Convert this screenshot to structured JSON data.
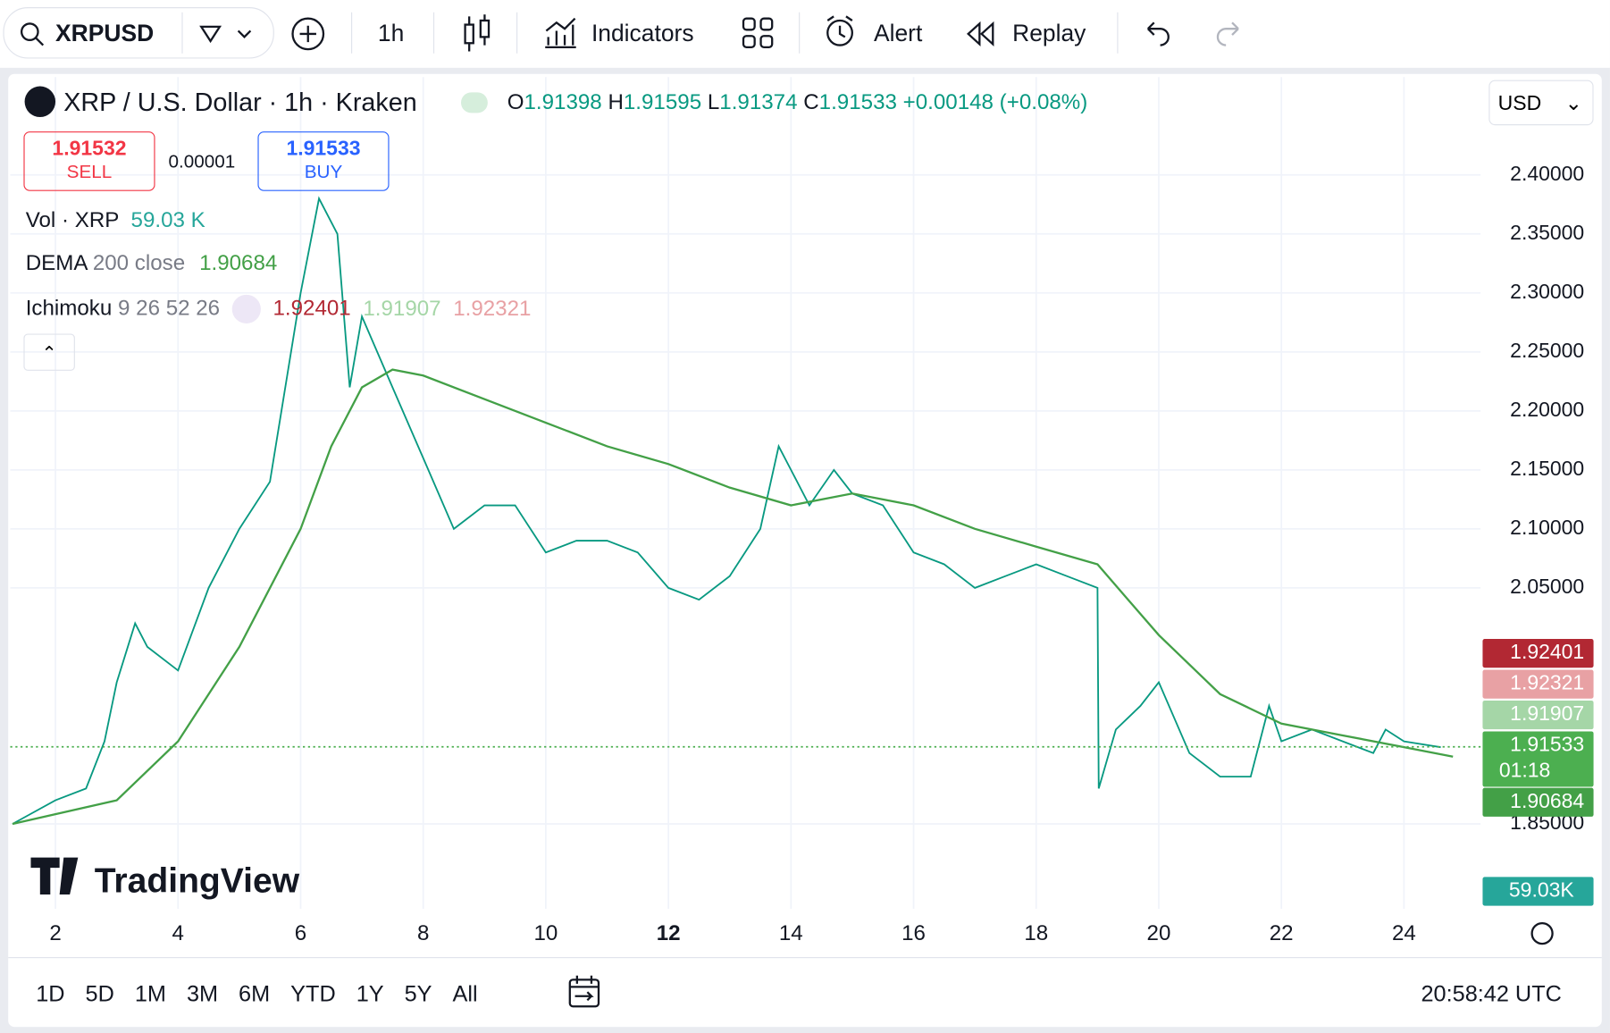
{
  "toolbar": {
    "interval": "1h",
    "indicators": "Indicators",
    "alert": "Alert",
    "replay": "Replay"
  },
  "legend": {
    "title": "XRP / U.S. Dollar · 1h · Kraken",
    "open_label": "O",
    "open": "1.91398",
    "high_label": "H",
    "high": "1.91595",
    "low_label": "L",
    "low": "1.91374",
    "close_label": "C",
    "change": "+0.00148 (+0.08%)",
    "sell_price": "1.91532",
    "sell": "SELL",
    "spread": "0.00001",
    "buy": "BUY",
    "vol_label": "Vol · XRP",
    "vol_value": "59.03 K",
    "dema_params": "200 close",
    "ichimoku_label": "Ichimoku",
    "ichimoku_params": "9 26 52 26"
  },
  "currency": "USD",
  "watermark": "TradingView",
  "chart_data": {
    "type": "line",
    "series": [
      {
        "name": "XRPUSD",
        "color": "#089981",
        "x": [
          1.3,
          2,
          2.5,
          2.8,
          3,
          3.3,
          3.5,
          4,
          4.5,
          5,
          5.5,
          6,
          6.3,
          6.6,
          6.8,
          7,
          7.5,
          8,
          8.5,
          9,
          9.5,
          10,
          10.5,
          11,
          11.5,
          12,
          12.5,
          13,
          13.5,
          13.8,
          14,
          14.3,
          14.7,
          15,
          15.5,
          16,
          16.5,
          17,
          17.5,
          18,
          18.5,
          19,
          19.02,
          19.3,
          19.7,
          20,
          20.5,
          21,
          21.5,
          21.8,
          22,
          22.5,
          23,
          23.5,
          23.7,
          24,
          24.6
        ],
        "values": [
          1.85,
          1.87,
          1.88,
          1.92,
          1.97,
          2.02,
          2.0,
          1.98,
          2.05,
          2.1,
          2.14,
          2.3,
          2.38,
          2.35,
          2.22,
          2.28,
          2.22,
          2.16,
          2.1,
          2.12,
          2.12,
          2.08,
          2.09,
          2.09,
          2.08,
          2.05,
          2.04,
          2.06,
          2.1,
          2.17,
          2.15,
          2.12,
          2.15,
          2.13,
          2.12,
          2.08,
          2.07,
          2.05,
          2.06,
          2.07,
          2.06,
          2.05,
          1.88,
          1.93,
          1.95,
          1.97,
          1.91,
          1.89,
          1.89,
          1.95,
          1.92,
          1.93,
          1.92,
          1.91,
          1.93,
          1.92,
          1.915
        ]
      },
      {
        "name": "DEMA",
        "color": "#43a047",
        "x": [
          1.3,
          3,
          4,
          5,
          6,
          6.5,
          7,
          7.5,
          8,
          9,
          10,
          11,
          12,
          13,
          14,
          15,
          16,
          17,
          18,
          19,
          19.5,
          20,
          21,
          22,
          23,
          24,
          24.8
        ],
        "values": [
          1.85,
          1.87,
          1.92,
          2.0,
          2.1,
          2.17,
          2.22,
          2.235,
          2.23,
          2.21,
          2.19,
          2.17,
          2.155,
          2.135,
          2.12,
          2.13,
          2.12,
          2.1,
          2.085,
          2.07,
          2.04,
          2.01,
          1.96,
          1.935,
          1.925,
          1.915,
          1.907
        ]
      }
    ],
    "xlim": [
      1.263,
      25.25
    ],
    "ylim": [
      1.778,
      2.483
    ],
    "xticks": [
      2,
      4,
      6,
      8,
      10,
      12,
      14,
      16,
      18,
      20,
      22,
      24
    ],
    "bold_xticks": [
      12
    ],
    "yticks": [
      {
        "value": 1.85,
        "label": "1.85000"
      },
      {
        "value": 2.05,
        "label": "2.05000"
      },
      {
        "value": 2.1,
        "label": "2.10000"
      },
      {
        "value": 2.15,
        "label": "2.15000"
      },
      {
        "value": 2.2,
        "label": "2.20000"
      },
      {
        "value": 2.25,
        "label": "2.25000"
      },
      {
        "value": 2.3,
        "label": "2.30000"
      },
      {
        "value": 2.35,
        "label": "2.35000"
      },
      {
        "value": 2.4,
        "label": "2.40000"
      }
    ],
    "grid": true,
    "current_index": 3,
    "price_labels": [
      {
        "value": 1.92401,
        "color": "#b22833"
      },
      {
        "value": 1.92321,
        "color": "#e8a1a4"
      },
      {
        "value": 1.91907,
        "color": "#a5d6a7"
      },
      {
        "value": 1.91533,
        "color": "#4caf50",
        "countdown": "01:18"
      },
      {
        "value": 1.90684,
        "color": "#43a047"
      }
    ],
    "volume_label": "59.03K"
  },
  "footer": {
    "ranges": [
      "1D",
      "5D",
      "1M",
      "3M",
      "6M",
      "YTD",
      "1Y",
      "5Y",
      "All"
    ],
    "time": "20:58:42 UTC"
  }
}
